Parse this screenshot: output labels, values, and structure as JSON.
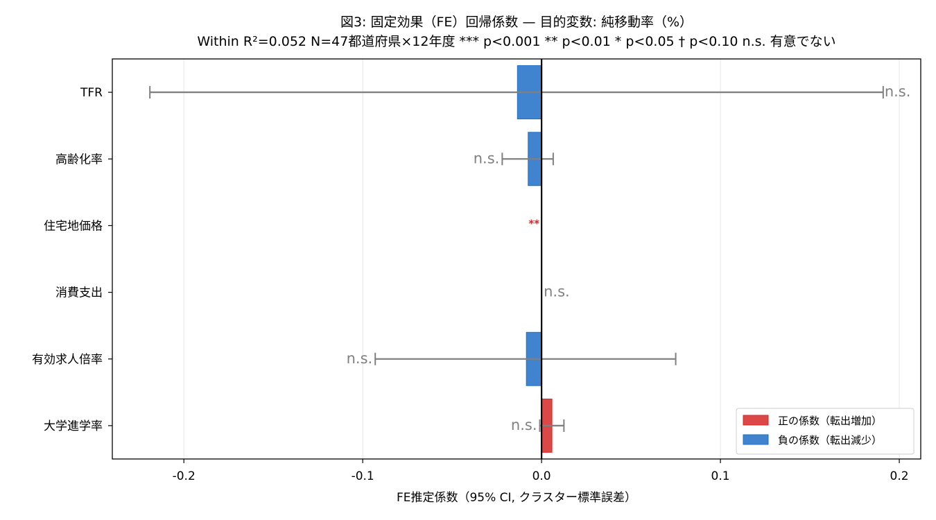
{
  "chart_data": {
    "type": "bar",
    "orientation": "horizontal",
    "title": "図3: 固定効果（FE）回帰係数 — 目的変数: 純移動率（%）",
    "subtitle": "Within R²=0.052  N=47都道府県×12年度  *** p<0.001  ** p<0.01  * p<0.05  † p<0.10  n.s. 有意でない",
    "xlabel": "FE推定係数（95% CI, クラスター標準誤差）",
    "xlim": [
      -0.24,
      0.212
    ],
    "xticks": [
      -0.2,
      -0.1,
      0.0,
      0.1,
      0.2
    ],
    "xtick_labels": [
      "-0.2",
      "-0.1",
      "0.0",
      "0.1",
      "0.2"
    ],
    "grid": "vertical",
    "categories": [
      "TFR",
      "高齢化率",
      "住宅地価格",
      "消費支出",
      "有効求人倍率",
      "大学進学率"
    ],
    "coefficients": [
      -0.0135,
      -0.0075,
      0.0,
      0.0,
      -0.0085,
      0.0058
    ],
    "ci_lower": [
      -0.219,
      -0.022,
      null,
      null,
      -0.093,
      -0.001
    ],
    "ci_upper": [
      0.191,
      0.0065,
      null,
      null,
      0.075,
      0.0125
    ],
    "significance": [
      "n.s.",
      "n.s.",
      "**",
      "n.s.",
      "n.s.",
      "n.s."
    ],
    "colors": {
      "positive": "#d62728",
      "negative": "#1f6fc8",
      "errorbar": "#808080",
      "zero_line": "#000000"
    },
    "legend": {
      "position": "lower-right",
      "entries": [
        {
          "label": "正の係数（転出増加）",
          "color": "#d62728"
        },
        {
          "label": "負の係数（転出減少）",
          "color": "#1f6fc8"
        }
      ]
    }
  }
}
